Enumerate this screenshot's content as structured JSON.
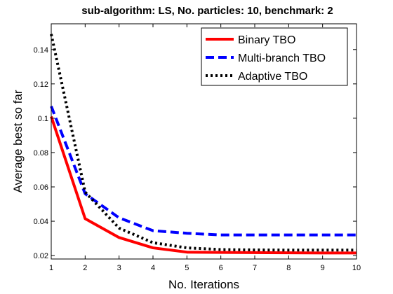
{
  "chart_data": {
    "type": "line",
    "title": "sub-algorithm: LS, No. particles: 10, benchmark: 2",
    "xlabel": "No. Iterations",
    "ylabel": "Average best so far",
    "x": [
      1,
      2,
      3,
      4,
      5,
      6,
      7,
      8,
      9,
      10
    ],
    "xlim": [
      1,
      10
    ],
    "ylim": [
      0.018,
      0.155
    ],
    "xticks": [
      "1",
      "2",
      "3",
      "4",
      "5",
      "6",
      "7",
      "8",
      "9",
      "10"
    ],
    "yticks": [
      "0.02",
      "0.04",
      "0.06",
      "0.08",
      "0.1",
      "0.12",
      "0.14"
    ],
    "yticks_values": [
      0.02,
      0.04,
      0.06,
      0.08,
      0.1,
      0.12,
      0.14
    ],
    "grid": false,
    "legend_position": "top-right",
    "series": [
      {
        "name": "Binary TBO",
        "color": "#ff0000",
        "dash": "solid",
        "values": [
          0.101,
          0.0415,
          0.0305,
          0.0245,
          0.022,
          0.0218,
          0.0217,
          0.0216,
          0.0215,
          0.0215
        ]
      },
      {
        "name": "Multi-branch TBO",
        "color": "#0000ff",
        "dash": "dashed",
        "values": [
          0.107,
          0.056,
          0.042,
          0.0345,
          0.033,
          0.032,
          0.032,
          0.032,
          0.032,
          0.032
        ]
      },
      {
        "name": "Adaptive TBO",
        "color": "#000000",
        "dash": "dotted",
        "values": [
          0.149,
          0.057,
          0.036,
          0.0275,
          0.0245,
          0.0235,
          0.0233,
          0.0232,
          0.0232,
          0.0232
        ]
      }
    ]
  }
}
